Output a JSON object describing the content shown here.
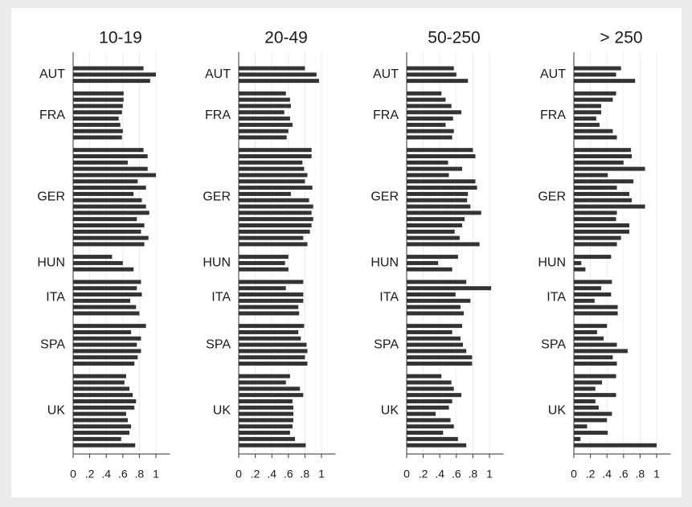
{
  "chart_data": [
    {
      "type": "bar",
      "title": "10-19",
      "color": "#333333",
      "grid": true,
      "xlim": [
        0,
        1.17
      ],
      "xticks": [
        0,
        {
          "value": 0.2,
          "label": ".2"
        },
        {
          "value": 0.4,
          "label": ".4"
        },
        {
          "value": 0.6,
          "label": ".6"
        },
        {
          "value": 0.8,
          "label": ".8"
        },
        1
      ],
      "groups": [
        {
          "name": "AUT",
          "values": [
            0.85,
            1.0,
            0.93
          ]
        },
        {
          "name": "FRA",
          "values": [
            0.61,
            0.61,
            0.6,
            0.59,
            0.55,
            0.57,
            0.6,
            0.59
          ]
        },
        {
          "name": "GER",
          "values": [
            0.85,
            0.9,
            0.66,
            0.9,
            1.0,
            0.78,
            0.88,
            0.73,
            0.83,
            0.88,
            0.92,
            0.77,
            0.86,
            0.82,
            0.91,
            0.86
          ]
        },
        {
          "name": "HUN",
          "values": [
            0.47,
            0.6,
            0.73
          ]
        },
        {
          "name": "ITA",
          "values": [
            0.82,
            0.77,
            0.83,
            0.69,
            0.76,
            0.8
          ]
        },
        {
          "name": "SPA",
          "values": [
            0.88,
            0.7,
            0.82,
            0.77,
            0.82,
            0.78,
            0.74
          ]
        },
        {
          "name": "UK",
          "values": [
            0.64,
            0.62,
            0.68,
            0.72,
            0.76,
            0.74,
            0.64,
            0.66,
            0.7,
            0.68,
            0.58,
            0.75
          ]
        }
      ]
    },
    {
      "type": "bar",
      "title": "20-49",
      "color": "#333333",
      "grid": true,
      "xlim": [
        0,
        1.17
      ],
      "xticks": [
        0,
        {
          "value": 0.2,
          "label": ".2"
        },
        {
          "value": 0.4,
          "label": ".4"
        },
        {
          "value": 0.6,
          "label": ".6"
        },
        {
          "value": 0.8,
          "label": ".8"
        },
        1
      ],
      "groups": [
        {
          "name": "AUT",
          "values": [
            0.8,
            0.94,
            0.97
          ]
        },
        {
          "name": "FRA",
          "values": [
            0.57,
            0.62,
            0.63,
            0.55,
            0.62,
            0.65,
            0.6,
            0.58
          ]
        },
        {
          "name": "GER",
          "values": [
            0.88,
            0.88,
            0.77,
            0.79,
            0.83,
            0.8,
            0.89,
            0.63,
            0.85,
            0.9,
            0.88,
            0.9,
            0.88,
            0.86,
            0.78,
            0.83
          ]
        },
        {
          "name": "HUN",
          "values": [
            0.6,
            0.56,
            0.6
          ]
        },
        {
          "name": "ITA",
          "values": [
            0.78,
            0.57,
            0.78,
            0.78,
            0.72,
            0.73
          ]
        },
        {
          "name": "SPA",
          "values": [
            0.79,
            0.72,
            0.75,
            0.82,
            0.83,
            0.8,
            0.83
          ]
        },
        {
          "name": "UK",
          "values": [
            0.62,
            0.57,
            0.74,
            0.78,
            0.65,
            0.66,
            0.66,
            0.66,
            0.65,
            0.62,
            0.68,
            0.81
          ]
        }
      ]
    },
    {
      "type": "bar",
      "title": "50-250",
      "color": "#333333",
      "grid": true,
      "xlim": [
        0,
        1.17
      ],
      "xticks": [
        0,
        {
          "value": 0.2,
          "label": ".2"
        },
        {
          "value": 0.4,
          "label": ".4"
        },
        {
          "value": 0.6,
          "label": ".6"
        },
        {
          "value": 0.8,
          "label": ".8"
        },
        1
      ],
      "groups": [
        {
          "name": "AUT",
          "values": [
            0.57,
            0.6,
            0.74
          ]
        },
        {
          "name": "FRA",
          "values": [
            0.42,
            0.47,
            0.54,
            0.66,
            0.56,
            0.47,
            0.57,
            0.55
          ]
        },
        {
          "name": "GER",
          "values": [
            0.8,
            0.83,
            0.5,
            0.67,
            0.51,
            0.83,
            0.85,
            0.74,
            0.73,
            0.77,
            0.9,
            0.7,
            0.67,
            0.58,
            0.64,
            0.88
          ]
        },
        {
          "name": "HUN",
          "values": [
            0.62,
            0.38,
            0.55
          ]
        },
        {
          "name": "ITA",
          "values": [
            0.72,
            1.02,
            0.59,
            0.77,
            0.65,
            0.69
          ]
        },
        {
          "name": "SPA",
          "values": [
            0.67,
            0.55,
            0.65,
            0.68,
            0.72,
            0.79,
            0.79
          ]
        },
        {
          "name": "UK",
          "values": [
            0.42,
            0.54,
            0.57,
            0.66,
            0.55,
            0.51,
            0.35,
            0.53,
            0.57,
            0.44,
            0.62,
            0.72
          ]
        }
      ]
    },
    {
      "type": "bar",
      "title": "> 250",
      "color": "#333333",
      "grid": true,
      "xlim": [
        0,
        1.17
      ],
      "xticks": [
        0,
        {
          "value": 0.2,
          "label": ".2"
        },
        {
          "value": 0.4,
          "label": ".4"
        },
        {
          "value": 0.6,
          "label": ".6"
        },
        {
          "value": 0.8,
          "label": ".8"
        },
        1
      ],
      "groups": [
        {
          "name": "AUT",
          "values": [
            0.57,
            0.51,
            0.74
          ]
        },
        {
          "name": "FRA",
          "values": [
            0.51,
            0.47,
            0.33,
            0.33,
            0.27,
            0.31,
            0.47,
            0.52
          ]
        },
        {
          "name": "GER",
          "values": [
            0.69,
            0.7,
            0.6,
            0.86,
            0.41,
            0.72,
            0.52,
            0.67,
            0.7,
            0.86,
            0.52,
            0.51,
            0.67,
            0.67,
            0.57,
            0.52
          ]
        },
        {
          "name": "HUN",
          "values": [
            0.45,
            0.09,
            0.14
          ]
        },
        {
          "name": "ITA",
          "values": [
            0.46,
            0.33,
            0.45,
            0.25,
            0.53,
            0.53
          ]
        },
        {
          "name": "SPA",
          "values": [
            0.4,
            0.28,
            0.36,
            0.52,
            0.65,
            0.47,
            0.52
          ]
        },
        {
          "name": "UK",
          "values": [
            0.51,
            0.34,
            0.26,
            0.51,
            0.26,
            0.3,
            0.46,
            0.4,
            0.16,
            0.41,
            0.08,
            1.0
          ]
        }
      ]
    }
  ]
}
